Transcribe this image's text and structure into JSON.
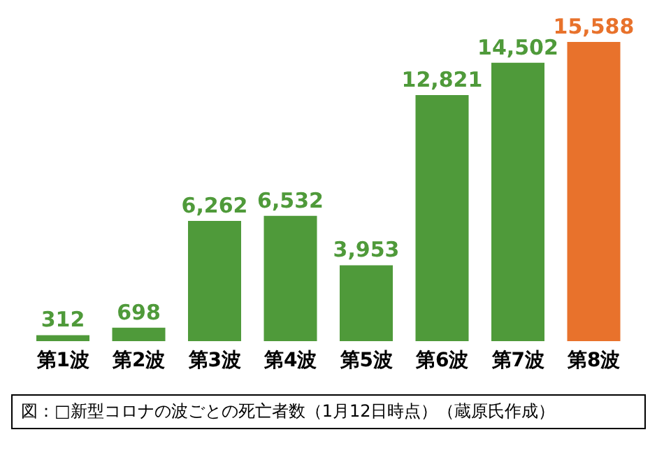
{
  "chart_data": {
    "type": "bar",
    "categories": [
      "第1波",
      "第2波",
      "第3波",
      "第4波",
      "第5波",
      "第6波",
      "第7波",
      "第8波"
    ],
    "values": [
      312,
      698,
      6262,
      6532,
      3953,
      12821,
      14502,
      15588
    ],
    "value_labels": [
      "312",
      "698",
      "6,262",
      "6,532",
      "3,953",
      "12,821",
      "14,502",
      "15,588"
    ],
    "colors": [
      "#4f9a3a",
      "#4f9a3a",
      "#4f9a3a",
      "#4f9a3a",
      "#4f9a3a",
      "#4f9a3a",
      "#4f9a3a",
      "#e8722c"
    ],
    "annotations": [
      "図：□新型コロナの波ごとの死亡者数（1月12日時点）（蔵原氏作成）"
    ]
  }
}
